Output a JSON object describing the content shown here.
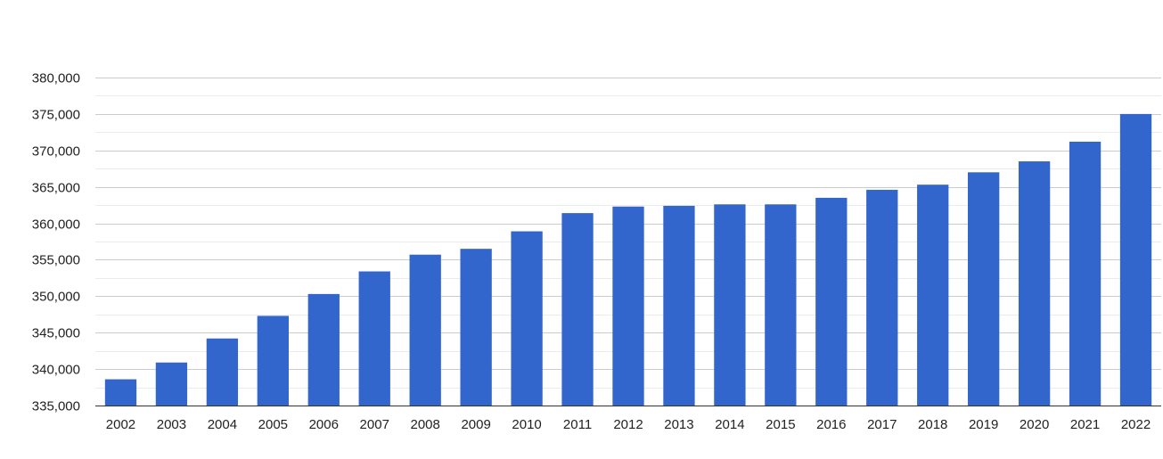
{
  "chart_data": {
    "type": "bar",
    "title": "",
    "xlabel": "",
    "ylabel": "",
    "categories": [
      "2002",
      "2003",
      "2004",
      "2005",
      "2006",
      "2007",
      "2008",
      "2009",
      "2010",
      "2011",
      "2012",
      "2013",
      "2014",
      "2015",
      "2016",
      "2017",
      "2018",
      "2019",
      "2020",
      "2021",
      "2022"
    ],
    "values": [
      338600,
      340900,
      344200,
      347300,
      350300,
      353400,
      355700,
      356500,
      358900,
      361400,
      362300,
      362400,
      362600,
      362600,
      363500,
      364600,
      365300,
      367000,
      368500,
      371200,
      375000
    ],
    "ylim": [
      335000,
      380000
    ],
    "yticks": [
      335000,
      340000,
      345000,
      350000,
      355000,
      360000,
      365000,
      370000,
      375000,
      380000
    ],
    "ytick_labels": [
      "335,000",
      "340,000",
      "345,000",
      "350,000",
      "355,000",
      "360,000",
      "365,000",
      "370,000",
      "375,000",
      "380,000"
    ],
    "grid": true,
    "minor_grid": true,
    "legend": "none",
    "bar_color": "#3366cc",
    "grid_color": "#cccccc",
    "minor_grid_color": "#ebebeb",
    "text_color": "#222222"
  }
}
